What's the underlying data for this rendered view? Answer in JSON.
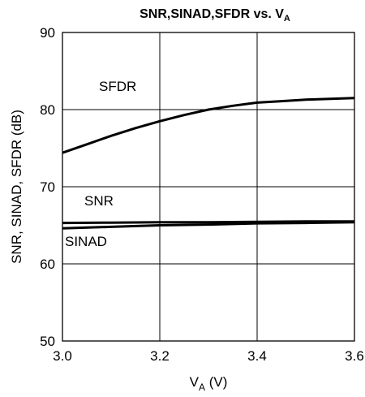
{
  "chart_data": {
    "type": "line",
    "title": "SNR,SINAD,SFDR vs. V",
    "title_subscript": "A",
    "xlabel": "V",
    "xlabel_subscript": "A",
    "xlabel_unit": " (V)",
    "ylabel": "SNR, SINAD, SFDR (dB)",
    "xlim": [
      3.0,
      3.6
    ],
    "ylim": [
      50,
      90
    ],
    "x_ticks": [
      "3.0",
      "3.2",
      "3.4",
      "3.6"
    ],
    "y_ticks": [
      "50",
      "60",
      "70",
      "80",
      "90"
    ],
    "grid": true,
    "series": [
      {
        "name": "SFDR",
        "x": [
          3.0,
          3.05,
          3.1,
          3.15,
          3.2,
          3.25,
          3.3,
          3.35,
          3.4,
          3.45,
          3.5,
          3.55,
          3.6
        ],
        "y": [
          74.4,
          75.5,
          76.6,
          77.6,
          78.5,
          79.3,
          80.0,
          80.5,
          80.9,
          81.1,
          81.3,
          81.4,
          81.5
        ]
      },
      {
        "name": "SNR",
        "x": [
          3.0,
          3.1,
          3.2,
          3.3,
          3.4,
          3.5,
          3.6
        ],
        "y": [
          65.3,
          65.35,
          65.4,
          65.4,
          65.45,
          65.5,
          65.5
        ]
      },
      {
        "name": "SINAD",
        "x": [
          3.0,
          3.1,
          3.2,
          3.3,
          3.4,
          3.5,
          3.6
        ],
        "y": [
          64.6,
          64.8,
          65.0,
          65.1,
          65.25,
          65.3,
          65.4
        ]
      }
    ],
    "annotations": [
      {
        "text": "SFDR",
        "x": 3.075,
        "y": 82.4
      },
      {
        "text": "SNR",
        "x": 3.045,
        "y": 67.6
      },
      {
        "text": "SINAD",
        "x": 3.005,
        "y": 62.3
      }
    ]
  }
}
